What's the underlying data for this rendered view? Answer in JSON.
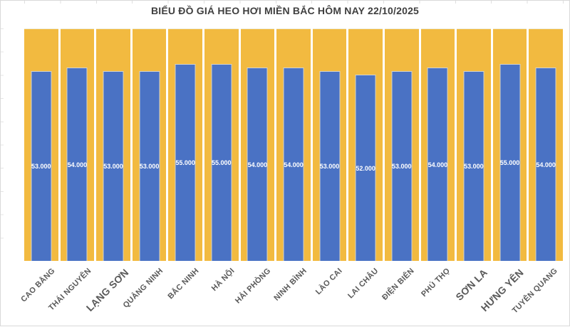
{
  "title": "BIỂU ĐỒ GIÁ HEO HƠI MIỀN BẮC HÔM NAY 22/10/2025",
  "chart_data": {
    "type": "bar",
    "title": "BIỂU ĐỒ GIÁ HEO HƠI MIỀN BẮC HÔM NAY 22/10/2025",
    "categories": [
      "CAO BẰNG",
      "THÁI NGUYÊN",
      "LẠNG SƠN",
      "QUẢNG NINH",
      "BẮC NINH",
      "HÀ NỘI",
      "HẢI PHÒNG",
      "NINH BÌNH",
      "LÀO CAI",
      "LAI CHÂU",
      "ĐIỆN BIÊN",
      "PHÚ THỌ",
      "SƠN LA",
      "HƯNG YÊN",
      "TUYÊN QUANG"
    ],
    "values": [
      53000,
      54000,
      53000,
      53000,
      55000,
      55000,
      54000,
      54000,
      53000,
      52000,
      53000,
      54000,
      53000,
      55000,
      54000
    ],
    "value_labels": [
      "53.000",
      "54.000",
      "53.000",
      "53.000",
      "55.000",
      "55.000",
      "54.000",
      "54.000",
      "53.000",
      "52.000",
      "53.000",
      "54.000",
      "53.000",
      "55.000",
      "54.000"
    ],
    "xlabel": "",
    "ylabel": "",
    "ylim": [
      0,
      65000
    ],
    "grid": false,
    "legend_position": "none",
    "value_labels_position": "center-of-bar",
    "large_category_label_indexes": [
      2,
      12,
      13
    ],
    "colors": {
      "bar": "#4a72c4",
      "track": "#f2ba40",
      "value_label": "#ffffff",
      "category_label": "#595959",
      "title": "#3f3f3f",
      "frame_border": "#d9d9d9"
    }
  }
}
